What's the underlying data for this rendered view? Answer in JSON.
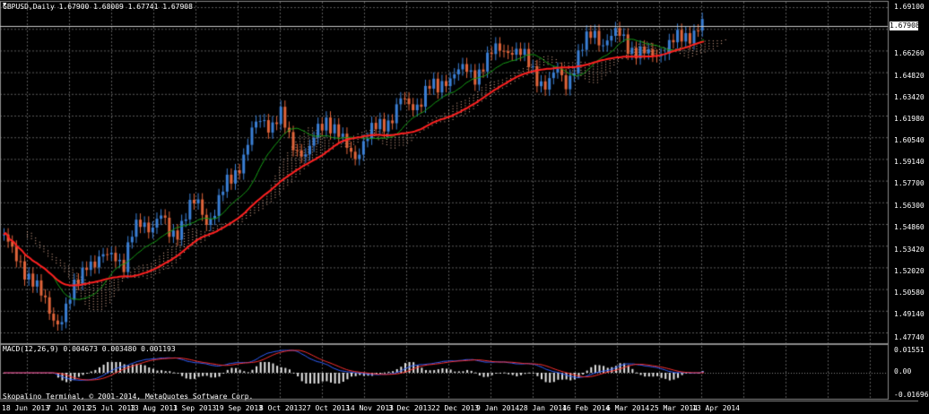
{
  "window": {
    "title": "GBPUSD,Daily  1.67900 1.68009 1.67741 1.67908",
    "copyright": "Skopalino Terminal, © 2001-2014, MetaQuotes Software Corp."
  },
  "indicator": {
    "macd_title": "MACD(12,26,9) 0.004673 0.003480 0.001193",
    "y_labels": [
      "0.01551",
      "0.00",
      "-0.01696"
    ]
  },
  "price_axis": {
    "labels": [
      "1.69100",
      "1.67908",
      "1.66260",
      "1.64820",
      "1.63420",
      "1.61980",
      "1.60540",
      "1.59140",
      "1.57700",
      "1.56300",
      "1.54860",
      "1.53420",
      "1.52020",
      "1.50580",
      "1.49140",
      "1.47740"
    ],
    "current_price": "1.67908"
  },
  "time_axis": {
    "labels": [
      "18 Jun 2013",
      "7 Jul 2013",
      "25 Jul 2013",
      "13 Aug 2013",
      "1 Sep 2013",
      "19 Sep 2013",
      "8 Oct 2013",
      "27 Oct 2013",
      "14 Nov 2013",
      "3 Dec 2013",
      "22 Dec 2013",
      "9 Jan 2014",
      "28 Jan 2014",
      "16 Feb 2014",
      "6 Mar 2014",
      "25 Mar 2014",
      "13 Apr 2014"
    ]
  },
  "colors": {
    "background": "#000000",
    "grid": "#5a5a5a",
    "bull_candle": "#3a7fd5",
    "bear_candle": "#e0643a",
    "ma_slow": "#ff2020",
    "ma_fast": "#16a016",
    "cloud": "#e8b49a",
    "macd_line": "#3060ff",
    "signal_line": "#ff3030"
  },
  "chart_data": {
    "type": "candlestick",
    "symbol": "GBPUSD",
    "timeframe": "Daily",
    "ylim": [
      1.4774,
      1.691
    ],
    "close_path": [
      1.545,
      1.53,
      1.525,
      1.518,
      1.505,
      1.495,
      1.49,
      1.5,
      1.515,
      1.53,
      1.525,
      1.53,
      1.535,
      1.525,
      1.545,
      1.555,
      1.55,
      1.555,
      1.545,
      1.55,
      1.56,
      1.565,
      1.555,
      1.56,
      1.575,
      1.585,
      1.595,
      1.61,
      1.62,
      1.615,
      1.62,
      1.605,
      1.6,
      1.595,
      1.61,
      1.62,
      1.612,
      1.6,
      1.595,
      1.605,
      1.61,
      1.615,
      1.62,
      1.63,
      1.625,
      1.63,
      1.64,
      1.635,
      1.645,
      1.65,
      1.648,
      1.645,
      1.655,
      1.66,
      1.662,
      1.665,
      1.66,
      1.652,
      1.645,
      1.64,
      1.648,
      1.642,
      1.655,
      1.665,
      1.675,
      1.668,
      1.67,
      1.672,
      1.665,
      1.66,
      1.658,
      1.662,
      1.665,
      1.668,
      1.672,
      1.676,
      1.679
    ]
  }
}
